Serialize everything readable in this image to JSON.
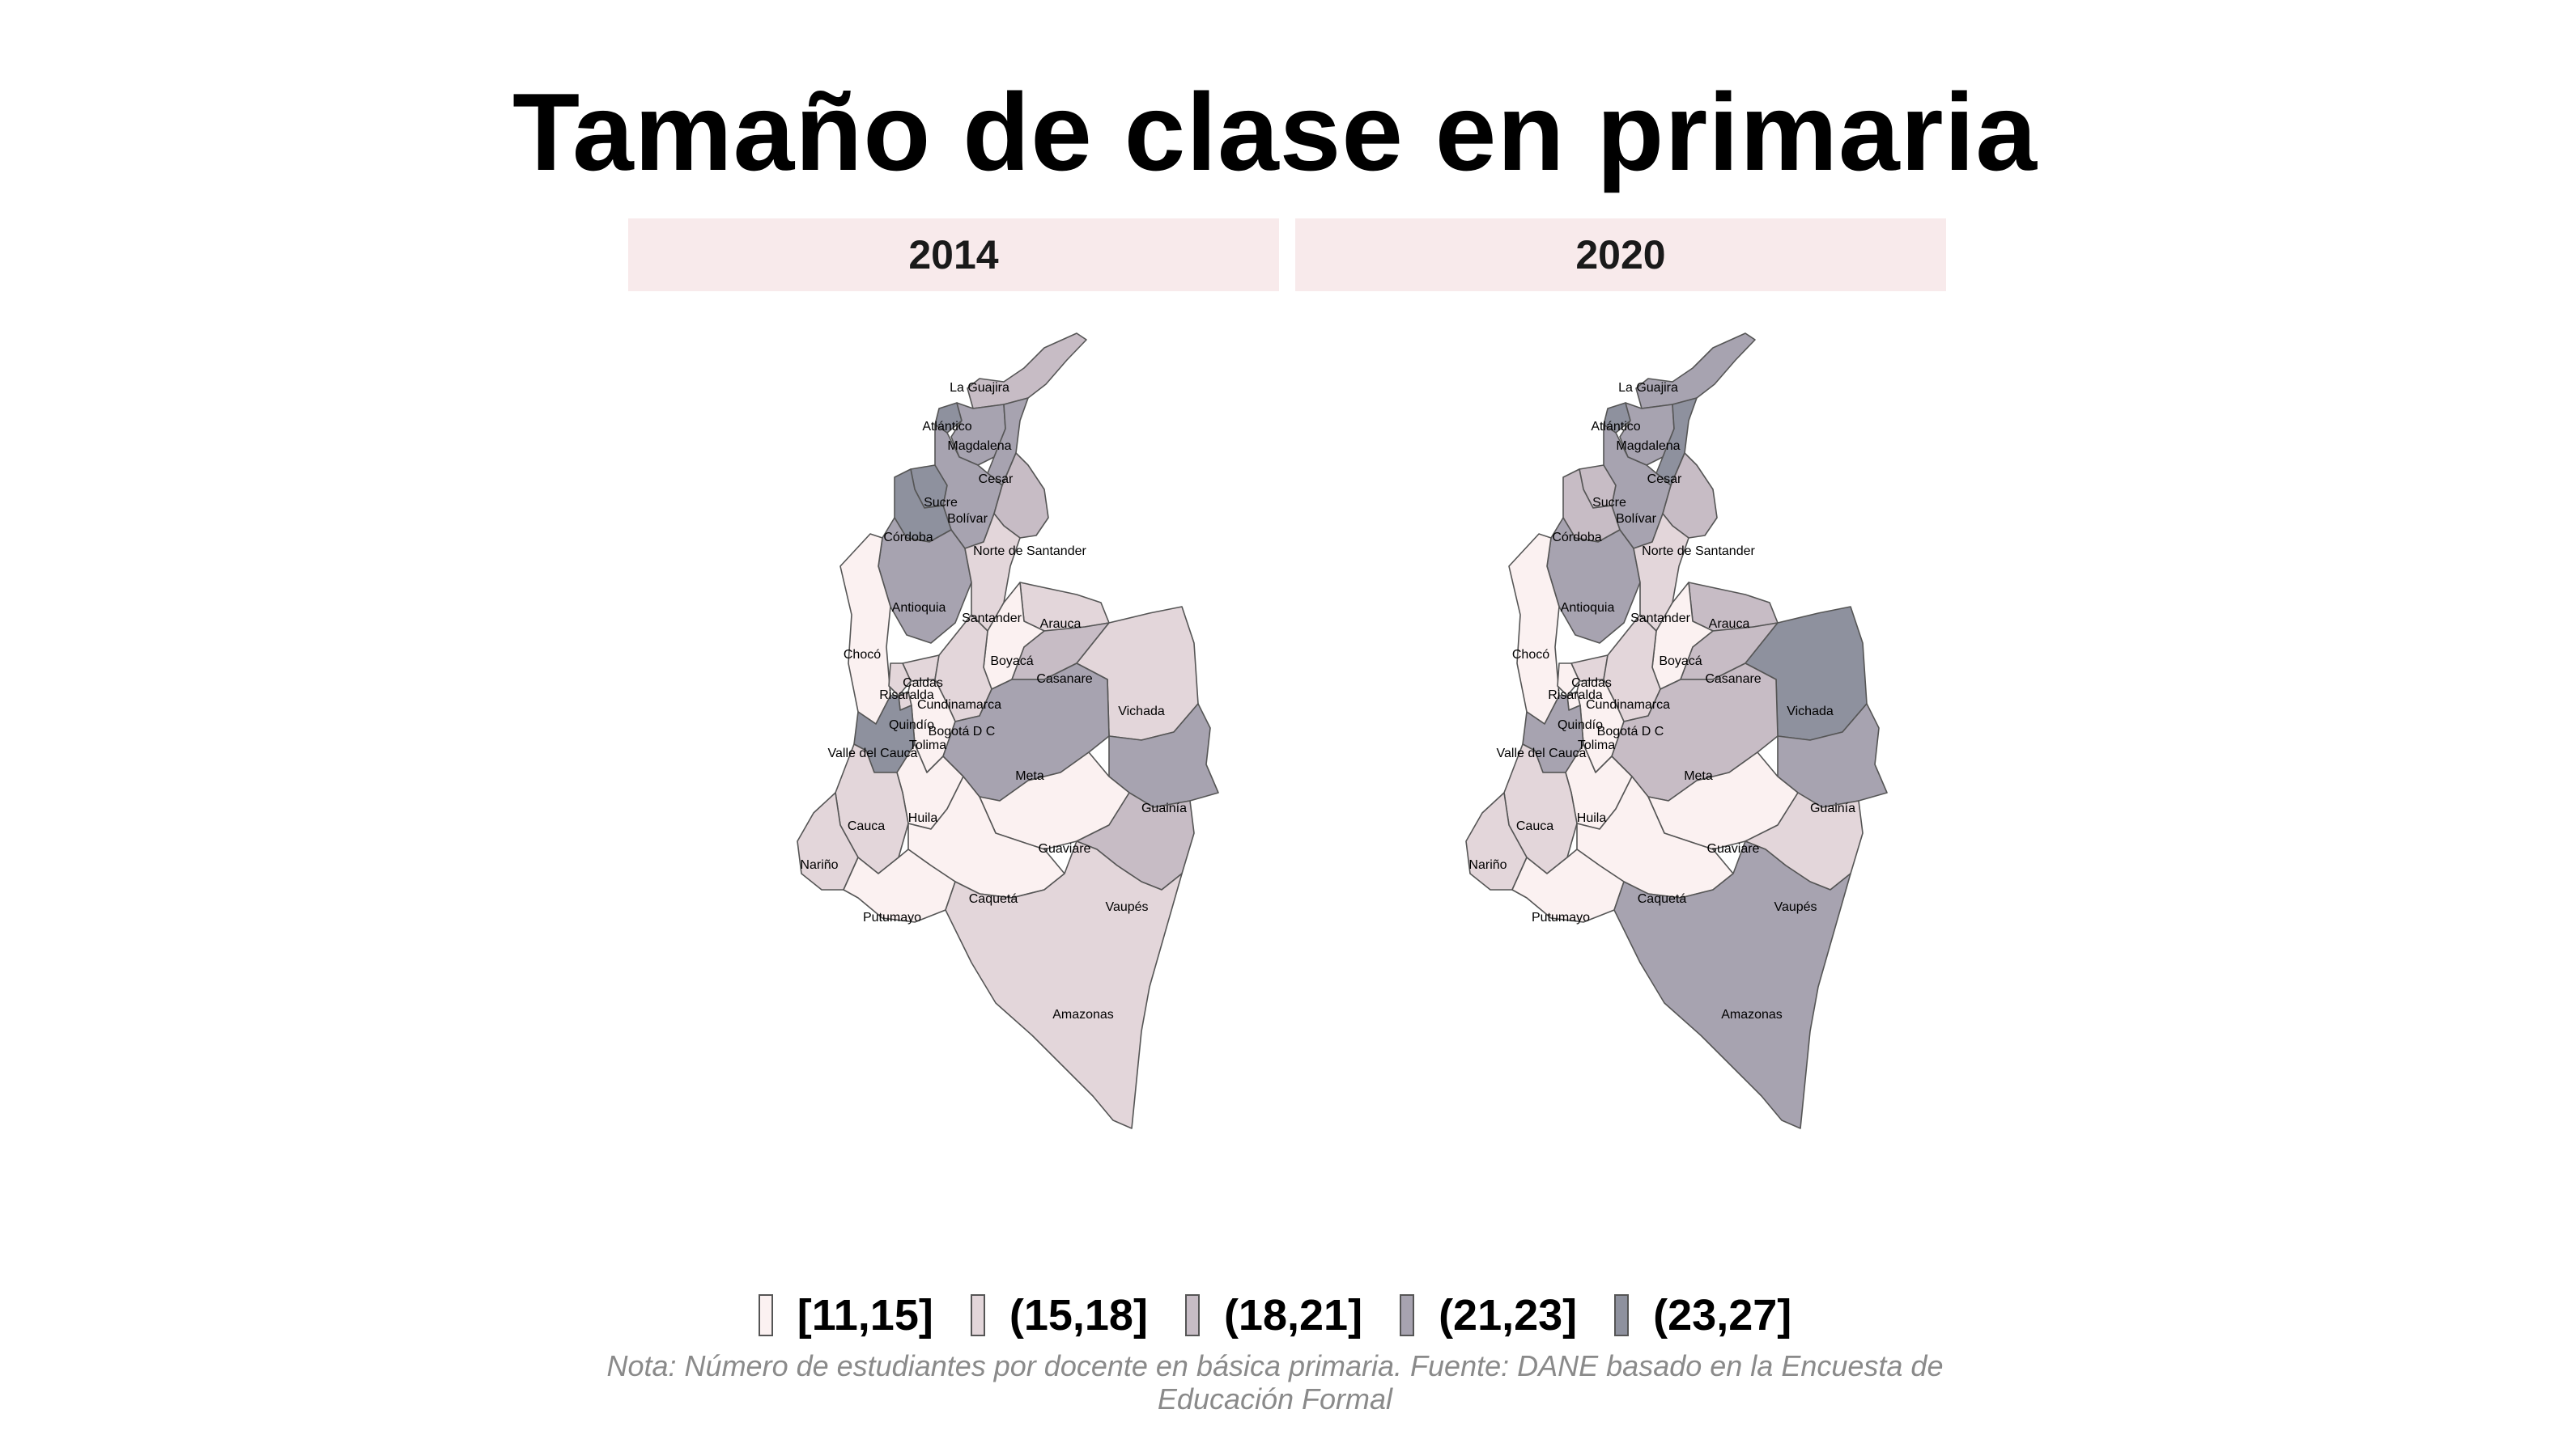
{
  "title": "Tamaño de clase en primaria",
  "panels": [
    {
      "year": "2014"
    },
    {
      "year": "2020"
    }
  ],
  "legend": [
    {
      "label": "[11,15]",
      "color": "#fbf1f1"
    },
    {
      "label": "(15,18]",
      "color": "#e3d6da"
    },
    {
      "label": "(18,21]",
      "color": "#c7bcc5"
    },
    {
      "label": "(21,23]",
      "color": "#a7a3b0"
    },
    {
      "label": "(23,27]",
      "color": "#8e919e"
    }
  ],
  "caption": "Nota: Número de estudiantes por docente en básica primaria. Fuente: DANE basado en la Encuesta de Educación Formal",
  "departments": [
    {
      "name": "La Guajira",
      "class_2014": 2,
      "class_2020": 3
    },
    {
      "name": "Atlántico",
      "class_2014": 4,
      "class_2020": 4
    },
    {
      "name": "Magdalena",
      "class_2014": 3,
      "class_2020": 3
    },
    {
      "name": "Cesar",
      "class_2014": 3,
      "class_2020": 4
    },
    {
      "name": "Sucre",
      "class_2014": 4,
      "class_2020": 2
    },
    {
      "name": "Bolívar",
      "class_2014": 3,
      "class_2020": 3
    },
    {
      "name": "Córdoba",
      "class_2014": 4,
      "class_2020": 2
    },
    {
      "name": "Norte de Santander",
      "class_2014": 2,
      "class_2020": 2
    },
    {
      "name": "Antioquia",
      "class_2014": 3,
      "class_2020": 3
    },
    {
      "name": "Santander",
      "class_2014": 1,
      "class_2020": 1
    },
    {
      "name": "Arauca",
      "class_2014": 1,
      "class_2020": 2
    },
    {
      "name": "Chocó",
      "class_2014": 0,
      "class_2020": 0
    },
    {
      "name": "Boyacá",
      "class_2014": 0,
      "class_2020": 0
    },
    {
      "name": "Caldas",
      "class_2014": 1,
      "class_2020": 1
    },
    {
      "name": "Risaralda",
      "class_2014": 1,
      "class_2020": 0
    },
    {
      "name": "Casanare",
      "class_2014": 2,
      "class_2020": 2
    },
    {
      "name": "Vichada",
      "class_2014": 1,
      "class_2020": 4
    },
    {
      "name": "Cundinamarca",
      "class_2014": 1,
      "class_2020": 1
    },
    {
      "name": "Bogotá D C",
      "class_2014": 3,
      "class_2020": 3
    },
    {
      "name": "Quindío",
      "class_2014": 1,
      "class_2020": 0
    },
    {
      "name": "Tolima",
      "class_2014": 0,
      "class_2020": 0
    },
    {
      "name": "Valle del Cauca",
      "class_2014": 4,
      "class_2020": 3
    },
    {
      "name": "Meta",
      "class_2014": 3,
      "class_2020": 2
    },
    {
      "name": "Guainía",
      "class_2014": 3,
      "class_2020": 3
    },
    {
      "name": "Huila",
      "class_2014": 0,
      "class_2020": 0
    },
    {
      "name": "Cauca",
      "class_2014": 1,
      "class_2020": 1
    },
    {
      "name": "Guaviare",
      "class_2014": 0,
      "class_2020": 0
    },
    {
      "name": "Nariño",
      "class_2014": 1,
      "class_2020": 1
    },
    {
      "name": "Caquetá",
      "class_2014": 0,
      "class_2020": 0
    },
    {
      "name": "Vaupés",
      "class_2014": 2,
      "class_2020": 1
    },
    {
      "name": "Putumayo",
      "class_2014": 0,
      "class_2020": 0
    },
    {
      "name": "Amazonas",
      "class_2014": 1,
      "class_2020": 3
    }
  ]
}
